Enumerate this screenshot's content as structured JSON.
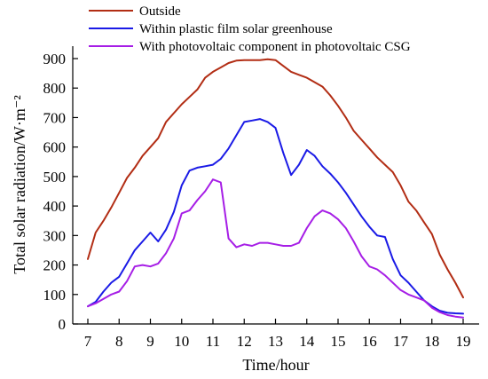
{
  "chart_data": {
    "type": "line",
    "xlabel": "Time/hour",
    "ylabel": "Total solar radiation/W·m⁻²",
    "xlim": [
      7,
      19
    ],
    "ylim": [
      0,
      900
    ],
    "xticks": [
      7,
      8,
      9,
      10,
      11,
      12,
      13,
      14,
      15,
      16,
      17,
      18,
      19
    ],
    "yticks": [
      0,
      100,
      200,
      300,
      400,
      500,
      600,
      700,
      800,
      900
    ],
    "legend_position": "top-left, above plot",
    "grid": false,
    "series": [
      {
        "name": "Outside",
        "color": "#b22d14",
        "x": [
          7,
          7.25,
          7.5,
          7.75,
          8,
          8.25,
          8.5,
          8.75,
          9,
          9.25,
          9.5,
          9.75,
          10,
          10.25,
          10.5,
          10.75,
          11,
          11.25,
          11.5,
          11.75,
          12,
          12.25,
          12.5,
          12.75,
          13,
          13.25,
          13.5,
          13.75,
          14,
          14.25,
          14.5,
          14.75,
          15,
          15.25,
          15.5,
          15.75,
          16,
          16.25,
          16.5,
          16.75,
          17,
          17.25,
          17.5,
          17.75,
          18,
          18.25,
          18.5,
          18.75,
          19
        ],
        "values": [
          220,
          310,
          350,
          395,
          445,
          495,
          530,
          570,
          600,
          630,
          685,
          715,
          745,
          770,
          795,
          835,
          855,
          870,
          885,
          893,
          895,
          895,
          895,
          898,
          895,
          875,
          855,
          845,
          835,
          820,
          805,
          775,
          740,
          700,
          655,
          625,
          595,
          565,
          540,
          515,
          470,
          415,
          385,
          345,
          305,
          235,
          185,
          140,
          90
        ]
      },
      {
        "name": "Within plastic film solar greenhouse",
        "color": "#1a1ae6",
        "x": [
          7,
          7.25,
          7.5,
          7.75,
          8,
          8.25,
          8.5,
          8.75,
          9,
          9.25,
          9.5,
          9.75,
          10,
          10.25,
          10.5,
          10.75,
          11,
          11.25,
          11.5,
          11.75,
          12,
          12.25,
          12.5,
          12.75,
          13,
          13.25,
          13.5,
          13.75,
          14,
          14.25,
          14.5,
          14.75,
          15,
          15.25,
          15.5,
          15.75,
          16,
          16.25,
          16.5,
          16.75,
          17,
          17.25,
          17.5,
          17.75,
          18,
          18.25,
          18.5,
          18.75,
          19
        ],
        "values": [
          60,
          75,
          110,
          140,
          160,
          205,
          250,
          280,
          310,
          280,
          320,
          380,
          470,
          520,
          530,
          535,
          540,
          560,
          595,
          640,
          685,
          690,
          695,
          685,
          665,
          580,
          505,
          540,
          590,
          570,
          535,
          510,
          480,
          445,
          405,
          365,
          330,
          300,
          295,
          220,
          165,
          140,
          110,
          80,
          60,
          45,
          38,
          36,
          35
        ]
      },
      {
        "name": "With photovoltaic component in photovoltaic CSG",
        "color": "#a61ee6",
        "x": [
          7,
          7.25,
          7.5,
          7.75,
          8,
          8.25,
          8.5,
          8.75,
          9,
          9.25,
          9.5,
          9.75,
          10,
          10.25,
          10.5,
          10.75,
          11,
          11.25,
          11.5,
          11.75,
          12,
          12.25,
          12.5,
          12.75,
          13,
          13.25,
          13.5,
          13.75,
          14,
          14.25,
          14.5,
          14.75,
          15,
          15.25,
          15.5,
          15.75,
          16,
          16.25,
          16.5,
          16.75,
          17,
          17.25,
          17.5,
          17.75,
          18,
          18.25,
          18.5,
          18.75,
          19
        ],
        "values": [
          60,
          70,
          85,
          100,
          110,
          145,
          195,
          200,
          195,
          205,
          240,
          290,
          375,
          385,
          420,
          450,
          490,
          480,
          290,
          260,
          270,
          265,
          275,
          275,
          270,
          265,
          265,
          275,
          325,
          365,
          385,
          375,
          355,
          325,
          280,
          230,
          195,
          185,
          165,
          140,
          115,
          100,
          90,
          80,
          55,
          40,
          30,
          25,
          22
        ]
      }
    ]
  }
}
